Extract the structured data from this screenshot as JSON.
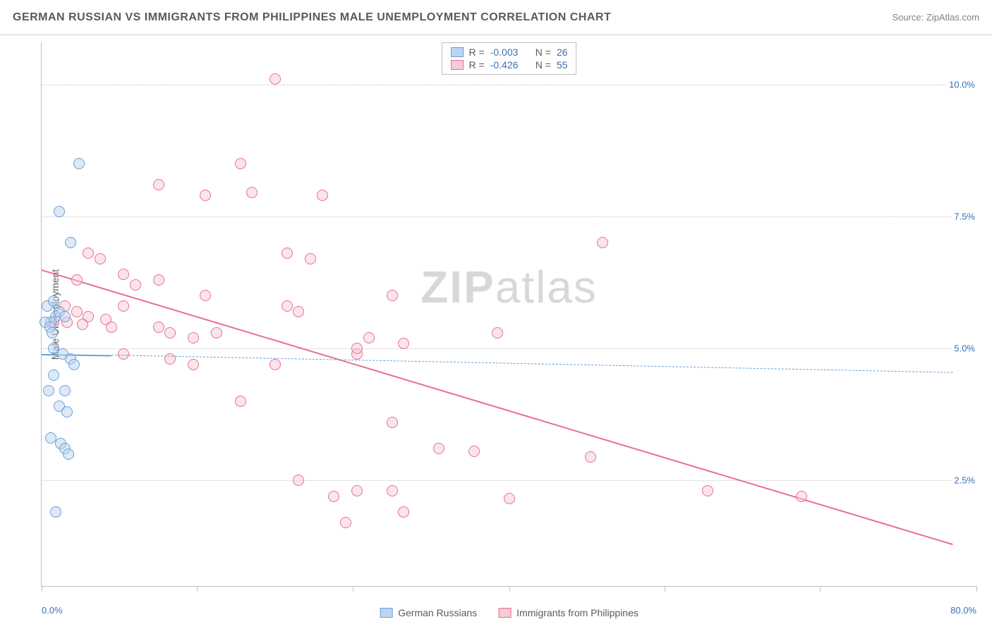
{
  "header": {
    "title": "GERMAN RUSSIAN VS IMMIGRANTS FROM PHILIPPINES MALE UNEMPLOYMENT CORRELATION CHART",
    "source": "Source: ZipAtlas.com"
  },
  "chart": {
    "type": "scatter",
    "ylabel": "Male Unemployment",
    "xlim": [
      0,
      80
    ],
    "ylim": [
      0.5,
      10.8
    ],
    "xtick_positions": [
      0,
      13.3,
      26.6,
      40,
      53.3,
      66.6,
      80
    ],
    "x_axis_start_label": "0.0%",
    "x_axis_end_label": "80.0%",
    "yticks": [
      {
        "value": 2.5,
        "label": "2.5%"
      },
      {
        "value": 5.0,
        "label": "5.0%"
      },
      {
        "value": 7.5,
        "label": "7.5%"
      },
      {
        "value": 10.0,
        "label": "10.0%"
      }
    ],
    "grid_color": "#c8c8c8",
    "background_color": "#ffffff",
    "axis_label_color": "#3b6fb6",
    "marker_radius": 8,
    "series": [
      {
        "name": "German Russians",
        "fill": "#bcd4f0",
        "stroke": "#6a9fd8",
        "R": -0.003,
        "N": 26,
        "trend": {
          "x1": 0,
          "y1": 4.9,
          "x2": 6,
          "y2": 4.88,
          "dash": false,
          "width": 2
        },
        "trend_ext": {
          "x1": 6,
          "y1": 4.88,
          "x2": 78,
          "y2": 4.55,
          "dash": true,
          "width": 1.5
        },
        "points": [
          [
            1.5,
            7.6
          ],
          [
            3.2,
            8.5
          ],
          [
            2.5,
            7.0
          ],
          [
            0.5,
            5.8
          ],
          [
            1.0,
            5.9
          ],
          [
            1.2,
            5.6
          ],
          [
            0.8,
            5.5
          ],
          [
            1.5,
            5.7
          ],
          [
            2.0,
            5.6
          ],
          [
            0.3,
            5.5
          ],
          [
            0.7,
            5.4
          ],
          [
            0.9,
            5.3
          ],
          [
            1.0,
            5.0
          ],
          [
            1.8,
            4.9
          ],
          [
            2.5,
            4.8
          ],
          [
            1.0,
            4.5
          ],
          [
            2.8,
            4.7
          ],
          [
            0.6,
            4.2
          ],
          [
            2.0,
            4.2
          ],
          [
            1.5,
            3.9
          ],
          [
            2.2,
            3.8
          ],
          [
            0.8,
            3.3
          ],
          [
            1.6,
            3.2
          ],
          [
            2.0,
            3.1
          ],
          [
            2.3,
            3.0
          ],
          [
            1.2,
            1.9
          ]
        ]
      },
      {
        "name": "Immigrants from Philippines",
        "fill": "#f6cbd6",
        "stroke": "#e8708f",
        "R": -0.426,
        "N": 55,
        "trend": {
          "x1": 0,
          "y1": 6.5,
          "x2": 78,
          "y2": 1.3,
          "dash": false,
          "width": 2
        },
        "points": [
          [
            20,
            10.1
          ],
          [
            17,
            8.5
          ],
          [
            10,
            8.1
          ],
          [
            14,
            7.9
          ],
          [
            18,
            7.95
          ],
          [
            24,
            7.9
          ],
          [
            4,
            6.8
          ],
          [
            5,
            6.7
          ],
          [
            3,
            6.3
          ],
          [
            7,
            6.4
          ],
          [
            8,
            6.2
          ],
          [
            10,
            6.3
          ],
          [
            14,
            6.0
          ],
          [
            7,
            5.8
          ],
          [
            2,
            5.8
          ],
          [
            3,
            5.7
          ],
          [
            4,
            5.6
          ],
          [
            5.5,
            5.55
          ],
          [
            1,
            5.5
          ],
          [
            2.2,
            5.5
          ],
          [
            3.5,
            5.45
          ],
          [
            6,
            5.4
          ],
          [
            10,
            5.4
          ],
          [
            21,
            6.8
          ],
          [
            23,
            6.7
          ],
          [
            21,
            5.8
          ],
          [
            22,
            5.7
          ],
          [
            30,
            6.0
          ],
          [
            11,
            5.3
          ],
          [
            13,
            5.2
          ],
          [
            15,
            5.3
          ],
          [
            7,
            4.9
          ],
          [
            11,
            4.8
          ],
          [
            13,
            4.7
          ],
          [
            20,
            4.7
          ],
          [
            28,
            5.2
          ],
          [
            31,
            5.1
          ],
          [
            39,
            5.3
          ],
          [
            48,
            7.0
          ],
          [
            17,
            4.0
          ],
          [
            27,
            4.9
          ],
          [
            30,
            3.6
          ],
          [
            22,
            2.5
          ],
          [
            25,
            2.2
          ],
          [
            27,
            2.3
          ],
          [
            26,
            1.7
          ],
          [
            30,
            2.3
          ],
          [
            31,
            1.9
          ],
          [
            34,
            3.1
          ],
          [
            37,
            3.05
          ],
          [
            40,
            2.15
          ],
          [
            47,
            2.95
          ],
          [
            57,
            2.3
          ],
          [
            65,
            2.2
          ]
        ],
        "points_extra": [
          [
            27,
            5.0
          ]
        ]
      }
    ],
    "legend_top_labels": {
      "R": "R =",
      "N": "N ="
    },
    "watermark": {
      "bold": "ZIP",
      "rest": "atlas"
    }
  }
}
